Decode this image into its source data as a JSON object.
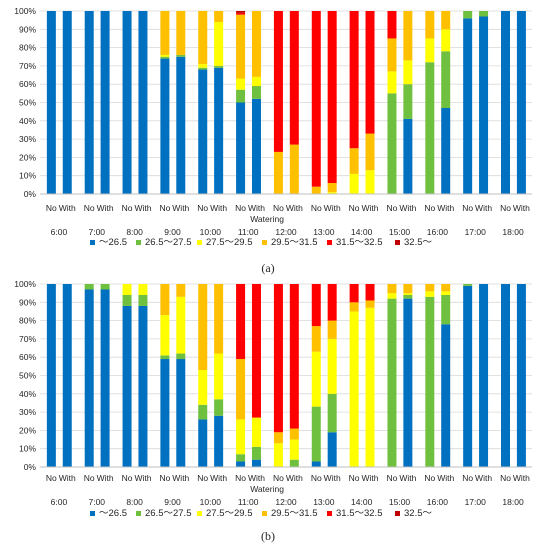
{
  "colors": {
    "lt26_5": "#0070C0",
    "b26_5_27_5": "#70C040",
    "b27_5_29_5": "#FFFF00",
    "b29_5_31_5": "#FFC000",
    "b31_5_32_5": "#FF0000",
    "ge32_5": "#C00000"
  },
  "legend": [
    "～26.5",
    "26.5～27.5",
    "27.5～29.5",
    "29.5～31.5",
    "31.5～32.5",
    "32.5～"
  ],
  "chart_data": [
    {
      "type": "bar",
      "stacked": true,
      "panel_label": "(a)",
      "y_ticks": [
        "0%",
        "10%",
        "20%",
        "30%",
        "40%",
        "50%",
        "60%",
        "70%",
        "80%",
        "90%",
        "100%"
      ],
      "ylim": [
        0,
        100
      ],
      "grid": true,
      "legend_position": "bottom",
      "xlabel": "Watering",
      "times": [
        "6:00",
        "7:00",
        "8:00",
        "9:00",
        "10:00",
        "11:00",
        "12:00",
        "13:00",
        "14:00",
        "15:00",
        "16:00",
        "17:00",
        "18:00"
      ],
      "categories": [
        "No",
        "With"
      ],
      "bars": [
        [
          [
            100,
            0,
            0,
            0,
            0,
            0
          ],
          [
            100,
            0,
            0,
            0,
            0,
            0
          ]
        ],
        [
          [
            100,
            0,
            0,
            0,
            0,
            0
          ],
          [
            100,
            0,
            0,
            0,
            0,
            0
          ]
        ],
        [
          [
            100,
            0,
            0,
            0,
            0,
            0
          ],
          [
            100,
            0,
            0,
            0,
            0,
            0
          ]
        ],
        [
          [
            74,
            1,
            1,
            24,
            0,
            0
          ],
          [
            75,
            1,
            0,
            24,
            0,
            0
          ]
        ],
        [
          [
            68,
            1,
            2,
            29,
            0,
            0
          ],
          [
            69,
            1,
            24,
            6,
            0,
            0
          ]
        ],
        [
          [
            50,
            7,
            6,
            35,
            1,
            1
          ],
          [
            52,
            7,
            5,
            36,
            0,
            0
          ]
        ],
        [
          [
            0,
            0,
            0,
            23,
            77,
            0
          ],
          [
            0,
            0,
            0,
            27,
            73,
            0
          ]
        ],
        [
          [
            0,
            0,
            0,
            4,
            96,
            0
          ],
          [
            0,
            0,
            1,
            5,
            94,
            0
          ]
        ],
        [
          [
            0,
            0,
            11,
            14,
            75,
            0
          ],
          [
            0,
            0,
            13,
            20,
            67,
            0
          ]
        ],
        [
          [
            0,
            55,
            12,
            18,
            15,
            0
          ],
          [
            41,
            19,
            13,
            27,
            0,
            0
          ]
        ],
        [
          [
            0,
            72,
            13,
            15,
            0,
            0
          ],
          [
            47,
            31,
            12,
            10,
            0,
            0
          ]
        ],
        [
          [
            96,
            4,
            0,
            0,
            0,
            0
          ],
          [
            97,
            3,
            0,
            0,
            0,
            0
          ]
        ],
        [
          [
            100,
            0,
            0,
            0,
            0,
            0
          ],
          [
            100,
            0,
            0,
            0,
            0,
            0
          ]
        ]
      ]
    },
    {
      "type": "bar",
      "stacked": true,
      "panel_label": "(b)",
      "y_ticks": [
        "0%",
        "10%",
        "20%",
        "30%",
        "40%",
        "50%",
        "60%",
        "70%",
        "80%",
        "90%",
        "100%"
      ],
      "ylim": [
        0,
        100
      ],
      "grid": true,
      "legend_position": "bottom",
      "xlabel": "Watering",
      "times": [
        "6:00",
        "7:00",
        "8:00",
        "9:00",
        "10:00",
        "11:00",
        "12:00",
        "13:00",
        "14:00",
        "15:00",
        "16:00",
        "17:00",
        "18:00"
      ],
      "categories": [
        "No",
        "With"
      ],
      "bars": [
        [
          [
            100,
            0,
            0,
            0,
            0,
            0
          ],
          [
            100,
            0,
            0,
            0,
            0,
            0
          ]
        ],
        [
          [
            97,
            3,
            0,
            0,
            0,
            0
          ],
          [
            97,
            3,
            0,
            0,
            0,
            0
          ]
        ],
        [
          [
            88,
            6,
            6,
            0,
            0,
            0
          ],
          [
            88,
            6,
            6,
            0,
            0,
            0
          ]
        ],
        [
          [
            59,
            2,
            22,
            17,
            0,
            0
          ],
          [
            59,
            3,
            31,
            7,
            0,
            0
          ]
        ],
        [
          [
            26,
            8,
            19,
            47,
            0,
            0
          ],
          [
            28,
            9,
            25,
            38,
            0,
            0
          ]
        ],
        [
          [
            3,
            4,
            19,
            33,
            41,
            0
          ],
          [
            4,
            7,
            16,
            0,
            73,
            0
          ]
        ],
        [
          [
            0,
            0,
            13,
            6,
            81,
            0
          ],
          [
            0,
            4,
            11,
            6,
            79,
            0
          ]
        ],
        [
          [
            3,
            30,
            30,
            14,
            23,
            0
          ],
          [
            19,
            21,
            30,
            10,
            20,
            0
          ]
        ],
        [
          [
            0,
            0,
            85,
            5,
            10,
            0
          ],
          [
            0,
            0,
            87,
            4,
            9,
            0
          ]
        ],
        [
          [
            0,
            92,
            3,
            5,
            0,
            0
          ],
          [
            92,
            2,
            1,
            5,
            0,
            0
          ]
        ],
        [
          [
            0,
            93,
            3,
            4,
            0,
            0
          ],
          [
            78,
            16,
            2,
            4,
            0,
            0
          ]
        ],
        [
          [
            99,
            1,
            0,
            0,
            0,
            0
          ],
          [
            100,
            0,
            0,
            0,
            0,
            0
          ]
        ],
        [
          [
            100,
            0,
            0,
            0,
            0,
            0
          ],
          [
            100,
            0,
            0,
            0,
            0,
            0
          ]
        ]
      ]
    }
  ]
}
